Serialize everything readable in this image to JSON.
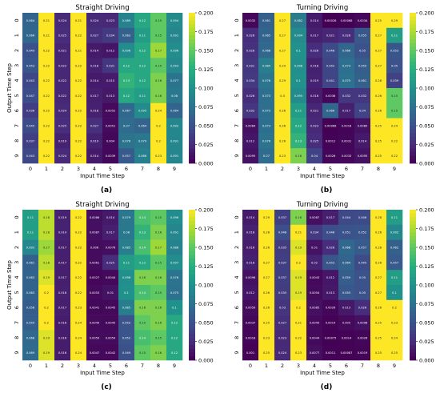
{
  "figure": {
    "panel_labels": [
      "(a)",
      "(b)",
      "(c)",
      "(d)"
    ]
  },
  "chart_data": [
    {
      "type": "heatmap",
      "title": "Straight Driving",
      "xlabel": "Input Time Step",
      "ylabel": "Output Time Step",
      "x_ticks": [
        "0",
        "1",
        "2",
        "3",
        "4",
        "5",
        "6",
        "7",
        "8",
        "9"
      ],
      "y_ticks": [
        "0",
        "1",
        "2",
        "3",
        "4",
        "5",
        "6",
        "7",
        "8",
        "9"
      ],
      "vmin": 0,
      "vmax": 0.2,
      "colorbar_ticks": [
        "0.000",
        "0.025",
        "0.050",
        "0.075",
        "0.100",
        "0.125",
        "0.150",
        "0.175",
        "0.200"
      ],
      "colormap": "viridis",
      "values": [
        [
          0.064,
          0.21,
          0.024,
          0.21,
          0.024,
          0.023,
          0.089,
          0.12,
          0.15,
          0.094
        ],
        [
          0.066,
          0.21,
          0.025,
          0.22,
          0.027,
          0.034,
          0.063,
          0.11,
          0.15,
          0.091
        ],
        [
          0.049,
          0.22,
          0.021,
          0.21,
          0.014,
          0.012,
          0.096,
          0.12,
          0.17,
          0.096
        ],
        [
          0.053,
          0.22,
          0.022,
          0.22,
          0.018,
          0.031,
          0.12,
          0.12,
          0.15,
          0.093
        ],
        [
          0.043,
          0.22,
          0.022,
          0.22,
          0.014,
          0.015,
          0.13,
          0.12,
          0.16,
          0.077
        ],
        [
          0.047,
          0.22,
          0.022,
          0.22,
          0.017,
          0.013,
          0.12,
          0.11,
          0.16,
          0.08
        ],
        [
          0.036,
          0.22,
          0.024,
          0.22,
          0.018,
          0.0052,
          0.067,
          0.095,
          0.24,
          0.064
        ],
        [
          0.045,
          0.22,
          0.025,
          0.22,
          0.027,
          0.0051,
          0.07,
          0.064,
          0.2,
          0.092
        ],
        [
          0.037,
          0.22,
          0.019,
          0.22,
          0.019,
          0.004,
          0.076,
          0.079,
          0.2,
          0.091
        ],
        [
          0.043,
          0.22,
          0.024,
          0.22,
          0.014,
          0.0039,
          0.057,
          0.086,
          0.23,
          0.091
        ]
      ]
    },
    {
      "type": "heatmap",
      "title": "Turning Driving",
      "xlabel": "Input Time Step",
      "ylabel": "",
      "x_ticks": [
        "0",
        "1",
        "2",
        "3",
        "4",
        "5",
        "6",
        "7",
        "8",
        "9"
      ],
      "y_ticks": [
        "0",
        "1",
        "2",
        "3",
        "4",
        "5",
        "6",
        "7",
        "8",
        "9"
      ],
      "vmin": 0,
      "vmax": 0.2,
      "colorbar_ticks": [
        "0.000",
        "0.025",
        "0.050",
        "0.075",
        "0.100",
        "0.125",
        "0.150",
        "0.175",
        "0.200"
      ],
      "colormap": "viridis",
      "values": [
        [
          0.0032,
          0.061,
          0.27,
          0.082,
          0.014,
          0.00028,
          0.00068,
          0.0034,
          0.25,
          0.29
        ],
        [
          0.026,
          0.065,
          0.27,
          0.094,
          0.017,
          0.021,
          0.026,
          0.055,
          0.27,
          0.11
        ],
        [
          0.028,
          0.068,
          0.27,
          0.1,
          0.026,
          0.046,
          0.066,
          0.05,
          0.27,
          0.053
        ],
        [
          0.031,
          0.085,
          0.29,
          0.098,
          0.018,
          0.042,
          0.073,
          0.059,
          0.27,
          0.05
        ],
        [
          0.034,
          0.078,
          0.29,
          0.1,
          0.019,
          0.041,
          0.075,
          0.061,
          0.26,
          0.039
        ],
        [
          0.026,
          0.073,
          0.3,
          0.095,
          0.016,
          0.0036,
          0.032,
          0.032,
          0.26,
          0.15
        ],
        [
          0.032,
          0.073,
          0.26,
          0.11,
          0.021,
          0.066,
          0.017,
          0.04,
          0.26,
          0.15
        ],
        [
          0.0084,
          0.073,
          0.26,
          0.12,
          0.023,
          0.00066,
          0.0018,
          0.0089,
          0.25,
          0.24
        ],
        [
          0.012,
          0.076,
          0.26,
          0.13,
          0.025,
          0.0012,
          0.0031,
          0.014,
          0.25,
          0.22
        ],
        [
          0.0095,
          0.07,
          0.23,
          0.16,
          0.04,
          0.0026,
          0.0033,
          0.0095,
          0.25,
          0.22
        ]
      ]
    },
    {
      "type": "heatmap",
      "title": "Straight Driving",
      "xlabel": "Input Time Step",
      "ylabel": "Output Time Step",
      "x_ticks": [
        "0",
        "1",
        "2",
        "3",
        "4",
        "5",
        "6",
        "7",
        "8",
        "9"
      ],
      "y_ticks": [
        "0",
        "1",
        "2",
        "3",
        "4",
        "5",
        "6",
        "7",
        "8",
        "9"
      ],
      "vmin": 0,
      "vmax": 0.2,
      "colorbar_ticks": [
        "0.000",
        "0.025",
        "0.050",
        "0.075",
        "0.100",
        "0.125",
        "0.150",
        "0.175",
        "0.200"
      ],
      "colormap": "viridis",
      "values": [
        [
          0.11,
          0.18,
          0.019,
          0.22,
          0.0086,
          0.014,
          0.079,
          0.14,
          0.15,
          0.096
        ],
        [
          0.11,
          0.18,
          0.019,
          0.22,
          0.0087,
          0.017,
          0.08,
          0.13,
          0.16,
          0.091
        ],
        [
          0.092,
          0.17,
          0.017,
          0.22,
          0.006,
          0.0076,
          0.085,
          0.14,
          0.17,
          0.088
        ],
        [
          0.061,
          0.18,
          0.017,
          0.22,
          0.0061,
          0.025,
          0.11,
          0.12,
          0.15,
          0.097
        ],
        [
          0.063,
          0.19,
          0.017,
          0.22,
          0.0027,
          0.0044,
          0.098,
          0.16,
          0.16,
          0.076
        ],
        [
          0.063,
          0.2,
          0.018,
          0.22,
          0.0053,
          0.01,
          0.1,
          0.14,
          0.15,
          0.075
        ],
        [
          0.058,
          0.2,
          0.017,
          0.23,
          0.0041,
          0.0045,
          0.085,
          0.16,
          0.16,
          0.1
        ],
        [
          0.059,
          0.2,
          0.016,
          0.24,
          0.0049,
          0.0045,
          0.052,
          0.15,
          0.16,
          0.12
        ],
        [
          0.068,
          0.19,
          0.016,
          0.24,
          0.0059,
          0.0054,
          0.052,
          0.14,
          0.15,
          0.12
        ],
        [
          0.069,
          0.19,
          0.016,
          0.24,
          0.0047,
          0.0042,
          0.049,
          0.15,
          0.16,
          0.12
        ]
      ]
    },
    {
      "type": "heatmap",
      "title": "Turning Driving",
      "xlabel": "Input Time Step",
      "ylabel": "",
      "x_ticks": [
        "0",
        "1",
        "2",
        "3",
        "4",
        "5",
        "6",
        "7",
        "8",
        "9"
      ],
      "y_ticks": [
        "0",
        "1",
        "2",
        "3",
        "4",
        "5",
        "6",
        "7",
        "8",
        "9"
      ],
      "vmin": 0,
      "vmax": 0.2,
      "colorbar_ticks": [
        "0.000",
        "0.025",
        "0.050",
        "0.075",
        "0.100",
        "0.125",
        "0.150",
        "0.175",
        "0.200"
      ],
      "colormap": "viridis",
      "values": [
        [
          0.014,
          0.29,
          0.037,
          0.16,
          0.0087,
          0.017,
          0.044,
          0.046,
          0.28,
          0.11
        ],
        [
          0.018,
          0.28,
          0.048,
          0.21,
          0.034,
          0.048,
          0.051,
          0.052,
          0.26,
          0.092
        ],
        [
          0.016,
          0.26,
          0.035,
          0.19,
          0.01,
          0.026,
          0.068,
          0.057,
          0.28,
          0.062
        ],
        [
          0.018,
          0.27,
          0.037,
          0.2,
          0.02,
          0.053,
          0.064,
          0.045,
          0.26,
          0.057
        ],
        [
          0.0096,
          0.27,
          0.037,
          0.19,
          0.0043,
          0.012,
          0.059,
          0.05,
          0.27,
          0.11
        ],
        [
          0.012,
          0.26,
          0.035,
          0.19,
          0.0054,
          0.013,
          0.055,
          0.05,
          0.27,
          0.1
        ],
        [
          0.0059,
          0.26,
          0.03,
          0.2,
          0.0085,
          0.0026,
          0.013,
          0.026,
          0.26,
          0.2
        ],
        [
          0.0037,
          0.25,
          0.027,
          0.21,
          0.0049,
          0.0014,
          0.005,
          0.0098,
          0.25,
          0.23
        ],
        [
          0.0018,
          0.23,
          0.023,
          0.22,
          0.0044,
          0.00075,
          0.0014,
          0.0026,
          0.25,
          0.24
        ],
        [
          0.001,
          0.25,
          0.024,
          0.23,
          0.0077,
          0.0011,
          0.00087,
          0.0019,
          0.25,
          0.25
        ]
      ]
    }
  ]
}
